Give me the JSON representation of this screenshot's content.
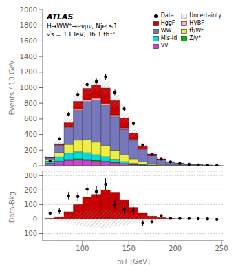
{
  "chart_data": [
    {
      "type": "bar",
      "stacked": true,
      "ylabel": "Events / 10 GeV",
      "annotations": [
        "ATLAS",
        "H→WW*→eνμν, Njet≤1",
        "√s = 13 TeV, 36.1 fb⁻¹"
      ],
      "legend": "upper right",
      "bins": [
        60,
        70,
        80,
        90,
        100,
        110,
        120,
        130,
        140,
        150,
        160,
        170,
        180,
        190,
        200,
        210,
        220,
        230,
        240,
        250
      ],
      "xlim": [
        57,
        253
      ],
      "xticks": [
        100,
        150,
        200,
        250
      ],
      "tick_labels": "y",
      "ylim": [
        0,
        2000
      ],
      "yticks": [
        0,
        200,
        400,
        600,
        800,
        1000,
        1200,
        1400,
        1600,
        1800,
        2000
      ],
      "grid": false,
      "series": [
        {
          "name": "VV",
          "color": "#cc44cc",
          "values": [
            25,
            50,
            70,
            75,
            70,
            60,
            50,
            38,
            25,
            15,
            8,
            5,
            3,
            2,
            1,
            1,
            0,
            0,
            0
          ]
        },
        {
          "name": "Z/γ*",
          "color": "#00bb00",
          "values": [
            5,
            8,
            12,
            14,
            12,
            10,
            8,
            5,
            3,
            2,
            1,
            1,
            0,
            0,
            0,
            0,
            0,
            0,
            0
          ]
        },
        {
          "name": "Mis-Id",
          "color": "#00dddd",
          "values": [
            30,
            55,
            80,
            90,
            85,
            72,
            58,
            40,
            25,
            14,
            8,
            4,
            2,
            1,
            1,
            0,
            0,
            0,
            0
          ]
        },
        {
          "name": "tt̄/Wt",
          "color": "#eeee44",
          "values": [
            15,
            55,
            110,
            150,
            165,
            160,
            145,
            115,
            85,
            58,
            32,
            18,
            10,
            6,
            3,
            2,
            1,
            1,
            0
          ]
        },
        {
          "name": "WW",
          "color": "#7777bb",
          "values": [
            25,
            95,
            220,
            380,
            490,
            540,
            510,
            430,
            330,
            240,
            160,
            100,
            62,
            38,
            24,
            15,
            10,
            6,
            3
          ]
        },
        {
          "name": "HVBF",
          "color": "#ffb3b3",
          "values": [
            1,
            3,
            8,
            15,
            20,
            22,
            25,
            22,
            15,
            9,
            5,
            2,
            1,
            1,
            0,
            0,
            0,
            0,
            0
          ]
        },
        {
          "name": "HggF",
          "color": "#cc0000",
          "values": [
            5,
            15,
            50,
            100,
            150,
            170,
            200,
            185,
            130,
            80,
            40,
            20,
            10,
            5,
            3,
            2,
            1,
            1,
            0
          ]
        },
        {
          "name": "Data",
          "type": "scatter",
          "color": "#000000",
          "marker": "o",
          "values": [
            60,
            345,
            660,
            915,
            1040,
            1080,
            1140,
            940,
            730,
            540,
            265,
            145,
            85,
            50,
            28,
            18,
            10,
            6,
            2
          ],
          "errors": [
            9,
            22,
            29,
            34,
            37,
            37,
            38,
            35,
            30,
            25,
            18,
            13,
            10,
            8,
            5,
            4,
            3,
            2,
            2
          ]
        },
        {
          "name": "Uncertainty",
          "type": "band",
          "color": "#888888",
          "values": [
            20,
            35,
            55,
            70,
            80,
            80,
            85,
            75,
            60,
            48,
            35,
            25,
            18,
            12,
            8,
            5,
            3,
            2,
            1
          ]
        }
      ]
    },
    {
      "type": "bar",
      "ylabel": "Data-Bkg.",
      "xlabel": "mT [GeV]",
      "bins": [
        60,
        70,
        80,
        90,
        100,
        110,
        120,
        130,
        140,
        150,
        160,
        170,
        180,
        190,
        200,
        210,
        220,
        230,
        240,
        250
      ],
      "xlim": [
        57,
        253
      ],
      "xticks": [
        100,
        150,
        200,
        250
      ],
      "ylim": [
        -150,
        330
      ],
      "yticks": [
        -100,
        0,
        100,
        200,
        300
      ],
      "grid": true,
      "series": [
        {
          "name": "HggF",
          "color": "#cc0000",
          "values": [
            5,
            15,
            50,
            100,
            150,
            170,
            200,
            185,
            130,
            80,
            40,
            20,
            10,
            5,
            3,
            2,
            1,
            1,
            0
          ]
        },
        {
          "name": "Uncertainty",
          "type": "band",
          "color": "#888888",
          "values": [
            8,
            18,
            32,
            45,
            55,
            58,
            60,
            52,
            42,
            32,
            20,
            13,
            8,
            5,
            3,
            2,
            1,
            1,
            1
          ]
        },
        {
          "name": "Data",
          "type": "scatter",
          "color": "#000000",
          "marker": "o",
          "values": [
            40,
            55,
            160,
            155,
            205,
            190,
            240,
            100,
            65,
            60,
            -28,
            -20,
            22,
            5,
            4,
            4,
            2,
            1,
            -2
          ],
          "errors": [
            10,
            20,
            28,
            32,
            38,
            38,
            42,
            32,
            28,
            25,
            18,
            14,
            11,
            8,
            6,
            5,
            4,
            3,
            3
          ]
        }
      ]
    }
  ]
}
